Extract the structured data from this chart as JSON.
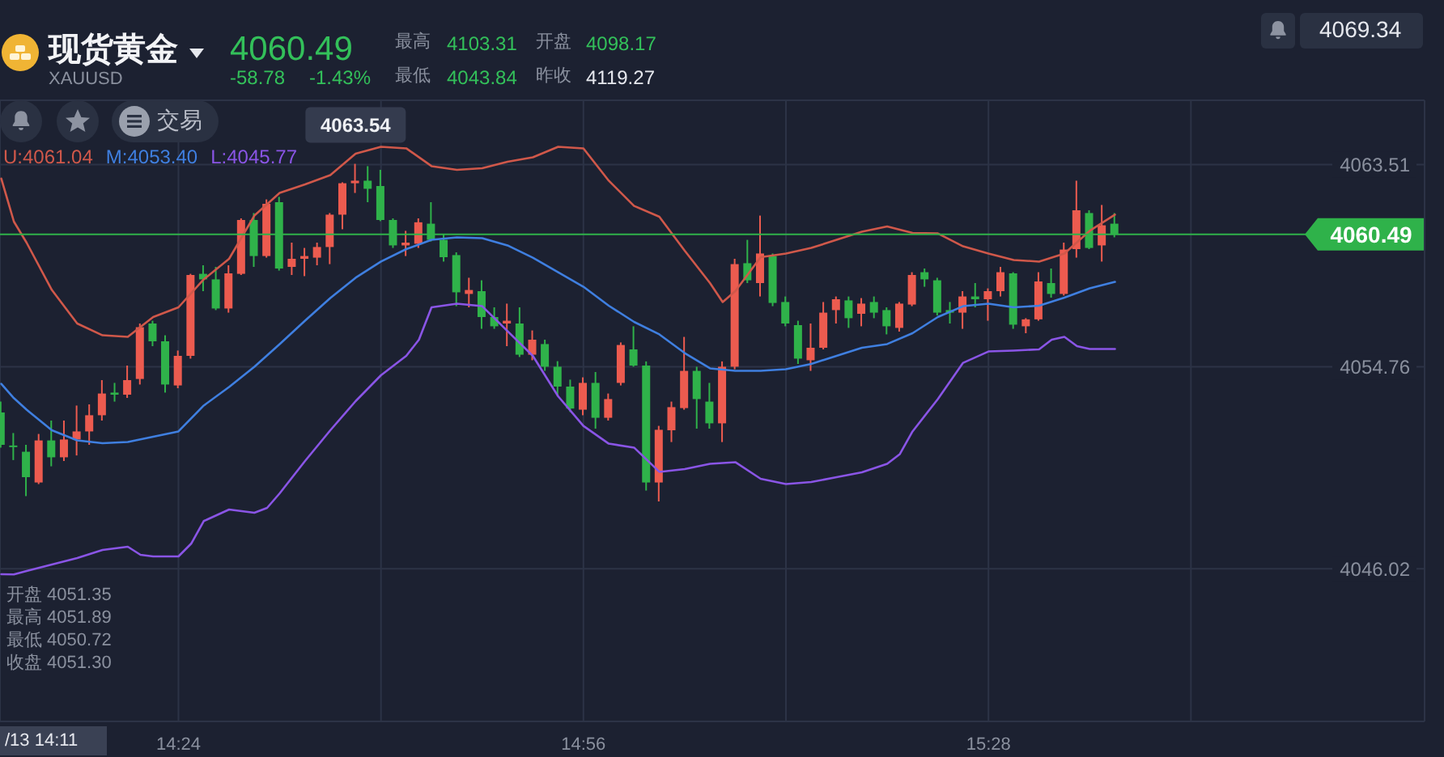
{
  "chart_data": {
    "type": "candlestick",
    "title": "现货黄金",
    "subtitle": "XAUUSD",
    "x": [
      14.1667,
      14.1833,
      14.2,
      14.2167,
      14.2333,
      14.25,
      14.2667,
      14.2833,
      14.3,
      14.3167,
      14.3333,
      14.35,
      14.3667,
      14.3833,
      14.4,
      14.4167,
      14.4333,
      14.45,
      14.4667,
      14.4833,
      14.5,
      14.5167,
      14.5333,
      14.55,
      14.5667,
      14.5833,
      14.6,
      14.6167,
      14.6333,
      14.65,
      14.6667,
      14.6833,
      14.7,
      14.7167,
      14.7333,
      14.75,
      14.7667,
      14.7833,
      14.8,
      14.8167,
      14.8333,
      14.85,
      14.8667,
      14.8833,
      14.9,
      14.9167,
      14.9333,
      14.95,
      14.9667,
      14.9833,
      15,
      15.0167,
      15.0333,
      15.05,
      15.0667,
      15.0833,
      15.1,
      15.1167,
      15.1333,
      15.15,
      15.1667,
      15.1833,
      15.2,
      15.2167,
      15.2333,
      15.25,
      15.2667,
      15.2833,
      15.3,
      15.3167,
      15.3333,
      15.35,
      15.3667,
      15.3833,
      15.4,
      15.4167,
      15.4333,
      15.45,
      15.4667,
      15.4833,
      15.5,
      15.5167,
      15.5333,
      15.55,
      15.5667,
      15.5833,
      15.6,
      15.6167,
      15.6333
    ],
    "ohlc": [
      [
        4052.78,
        4053.25,
        4051.26,
        4051.38
      ],
      [
        4051.35,
        4051.89,
        4050.72,
        4051.3
      ],
      [
        4051.08,
        4051.38,
        4049.16,
        4049.98
      ],
      [
        4049.75,
        4051.85,
        4049.68,
        4051.57
      ],
      [
        4051.57,
        4052.43,
        4050.45,
        4050.84
      ],
      [
        4050.84,
        4052.43,
        4050.68,
        4051.61
      ],
      [
        4051.61,
        4053.08,
        4050.92,
        4051.96
      ],
      [
        4051.96,
        4053.13,
        4051.38,
        4052.66
      ],
      [
        4052.66,
        4054.18,
        4052.43,
        4053.6
      ],
      [
        4053.64,
        4054.06,
        4053.25,
        4053.55
      ],
      [
        4053.55,
        4054.81,
        4053.41,
        4054.18
      ],
      [
        4054.23,
        4056.63,
        4053.99,
        4056.47
      ],
      [
        4056.63,
        4056.75,
        4055.65,
        4055.86
      ],
      [
        4055.86,
        4056.12,
        4053.64,
        4053.99
      ],
      [
        4053.95,
        4055.46,
        4053.83,
        4055.23
      ],
      [
        4055.23,
        4058.78,
        4055.11,
        4058.73
      ],
      [
        4058.78,
        4059.15,
        4058.03,
        4058.54
      ],
      [
        4058.54,
        4059.08,
        4057.21,
        4057.28
      ],
      [
        4057.28,
        4059.15,
        4057.1,
        4058.8
      ],
      [
        4058.78,
        4061.18,
        4058.73,
        4061.11
      ],
      [
        4061.11,
        4061.41,
        4059.08,
        4059.55
      ],
      [
        4059.55,
        4062.0,
        4059.48,
        4061.81
      ],
      [
        4061.88,
        4062.11,
        4058.92,
        4059.01
      ],
      [
        4059.08,
        4060.13,
        4058.73,
        4059.43
      ],
      [
        4059.43,
        4059.9,
        4058.68,
        4059.55
      ],
      [
        4059.48,
        4060.13,
        4059.15,
        4059.94
      ],
      [
        4059.94,
        4061.41,
        4059.2,
        4061.34
      ],
      [
        4061.34,
        4062.74,
        4060.71,
        4062.7
      ],
      [
        4062.7,
        4063.54,
        4062.28,
        4062.81
      ],
      [
        4062.81,
        4063.44,
        4061.88,
        4062.46
      ],
      [
        4062.58,
        4063.28,
        4061.06,
        4061.11
      ],
      [
        4061.11,
        4061.18,
        4059.9,
        4060.01
      ],
      [
        4060.01,
        4060.64,
        4059.55,
        4060.13
      ],
      [
        4060.08,
        4061.18,
        4059.9,
        4061.01
      ],
      [
        4060.95,
        4061.88,
        4060.18,
        4060.25
      ],
      [
        4060.25,
        4060.48,
        4059.31,
        4059.5
      ],
      [
        4059.59,
        4059.71,
        4057.38,
        4057.98
      ],
      [
        4057.91,
        4058.61,
        4057.33,
        4058.08
      ],
      [
        4058.03,
        4058.5,
        4056.4,
        4056.91
      ],
      [
        4056.91,
        4057.33,
        4056.4,
        4056.51
      ],
      [
        4056.63,
        4057.49,
        4055.65,
        4056.75
      ],
      [
        4056.63,
        4057.33,
        4055.18,
        4055.28
      ],
      [
        4055.28,
        4056.33,
        4055.04,
        4055.93
      ],
      [
        4055.74,
        4055.93,
        4054.58,
        4054.76
      ],
      [
        4054.76,
        4055.0,
        4053.5,
        4053.9
      ],
      [
        4053.9,
        4054.2,
        4052.8,
        4052.95
      ],
      [
        4052.9,
        4054.3,
        4052.66,
        4054.06
      ],
      [
        4054.06,
        4054.53,
        4052.08,
        4052.55
      ],
      [
        4052.55,
        4053.6,
        4052.43,
        4053.36
      ],
      [
        4054.06,
        4055.81,
        4053.95,
        4055.7
      ],
      [
        4055.51,
        4056.51,
        4054.76,
        4054.81
      ],
      [
        4054.81,
        4054.99,
        4049.4,
        4049.75
      ],
      [
        4049.75,
        4052.2,
        4048.93,
        4052.03
      ],
      [
        4052.01,
        4053.25,
        4051.5,
        4053.01
      ],
      [
        4052.97,
        4056.05,
        4052.9,
        4054.58
      ],
      [
        4054.58,
        4054.76,
        4052.08,
        4053.36
      ],
      [
        4053.25,
        4054.06,
        4052.08,
        4052.31
      ],
      [
        4052.31,
        4054.99,
        4051.5,
        4054.76
      ],
      [
        4054.76,
        4059.43,
        4054.65,
        4059.2
      ],
      [
        4059.24,
        4060.25,
        4058.38,
        4058.5
      ],
      [
        4058.38,
        4061.3,
        4057.8,
        4059.66
      ],
      [
        4059.55,
        4059.66,
        4057.38,
        4057.52
      ],
      [
        4057.56,
        4057.8,
        4056.51,
        4056.63
      ],
      [
        4056.56,
        4056.75,
        4054.88,
        4055.11
      ],
      [
        4055.04,
        4056.63,
        4054.58,
        4055.58
      ],
      [
        4055.58,
        4057.56,
        4055.51,
        4057.1
      ],
      [
        4057.21,
        4057.8,
        4056.63,
        4057.68
      ],
      [
        4057.63,
        4057.8,
        4056.44,
        4056.86
      ],
      [
        4057.05,
        4057.73,
        4056.51,
        4057.49
      ],
      [
        4057.56,
        4057.8,
        4056.86,
        4057.1
      ],
      [
        4057.21,
        4057.33,
        4056.16,
        4056.51
      ],
      [
        4056.44,
        4057.56,
        4056.28,
        4057.49
      ],
      [
        4057.45,
        4058.85,
        4057.38,
        4058.73
      ],
      [
        4058.85,
        4059.01,
        4058.22,
        4058.54
      ],
      [
        4058.5,
        4058.61,
        4056.98,
        4057.1
      ],
      [
        4057.21,
        4057.56,
        4056.63,
        4057.1
      ],
      [
        4057.1,
        4058.03,
        4056.4,
        4057.8
      ],
      [
        4057.8,
        4058.38,
        4057.33,
        4057.68
      ],
      [
        4057.68,
        4058.15,
        4056.75,
        4058.03
      ],
      [
        4058.03,
        4059.08,
        4057.8,
        4058.85
      ],
      [
        4058.8,
        4058.85,
        4056.4,
        4056.58
      ],
      [
        4056.51,
        4056.86,
        4056.21,
        4056.81
      ],
      [
        4056.81,
        4058.85,
        4056.75,
        4058.45
      ],
      [
        4058.38,
        4059.01,
        4057.75,
        4057.91
      ],
      [
        4057.91,
        4060.13,
        4057.84,
        4059.83
      ],
      [
        4059.85,
        4062.81,
        4059.48,
        4061.53
      ],
      [
        4061.41,
        4061.53,
        4059.85,
        4059.9
      ],
      [
        4060.01,
        4061.76,
        4059.31,
        4060.88
      ],
      [
        4060.95,
        4061.41,
        4060.36,
        4060.49
      ]
    ],
    "colors": [
      "#2fb24a",
      "#2fb24a",
      "#2fb24a",
      "#ec5b4f",
      "#2fb24a",
      "#ec5b4f",
      "#ec5b4f",
      "#ec5b4f",
      "#ec5b4f",
      "#2fb24a",
      "#ec5b4f",
      "#ec5b4f",
      "#2fb24a",
      "#2fb24a",
      "#ec5b4f",
      "#ec5b4f",
      "#2fb24a",
      "#2fb24a",
      "#ec5b4f",
      "#ec5b4f",
      "#2fb24a",
      "#ec5b4f",
      "#2fb24a",
      "#ec5b4f",
      "#ec5b4f",
      "#ec5b4f",
      "#ec5b4f",
      "#ec5b4f",
      "#ec5b4f",
      "#2fb24a",
      "#2fb24a",
      "#2fb24a",
      "#ec5b4f",
      "#ec5b4f",
      "#2fb24a",
      "#2fb24a",
      "#2fb24a",
      "#ec5b4f",
      "#2fb24a",
      "#2fb24a",
      "#ec5b4f",
      "#2fb24a",
      "#ec5b4f",
      "#2fb24a",
      "#2fb24a",
      "#2fb24a",
      "#ec5b4f",
      "#2fb24a",
      "#ec5b4f",
      "#ec5b4f",
      "#2fb24a",
      "#2fb24a",
      "#ec5b4f",
      "#ec5b4f",
      "#ec5b4f",
      "#2fb24a",
      "#2fb24a",
      "#ec5b4f",
      "#ec5b4f",
      "#2fb24a",
      "#ec5b4f",
      "#2fb24a",
      "#2fb24a",
      "#2fb24a",
      "#ec5b4f",
      "#ec5b4f",
      "#ec5b4f",
      "#2fb24a",
      "#ec5b4f",
      "#2fb24a",
      "#2fb24a",
      "#ec5b4f",
      "#ec5b4f",
      "#2fb24a",
      "#2fb24a",
      "#2fb24a",
      "#ec5b4f",
      "#2fb24a",
      "#ec5b4f",
      "#ec5b4f",
      "#2fb24a",
      "#ec5b4f",
      "#ec5b4f",
      "#2fb24a",
      "#ec5b4f",
      "#ec5b4f",
      "#2fb24a",
      "#ec5b4f",
      "#2fb24a"
    ],
    "series": [
      {
        "name": "U:4061.04",
        "type": "line",
        "color": "#d0584a",
        "x": [
          14.1667,
          14.1833,
          14.2,
          14.2333,
          14.2667,
          14.3,
          14.3333,
          14.3667,
          14.4,
          14.4333,
          14.4667,
          14.5,
          14.5333,
          14.5667,
          14.6,
          14.6333,
          14.6667,
          14.7,
          14.7333,
          14.7667,
          14.8,
          14.8333,
          14.8667,
          14.9,
          14.9333,
          14.9667,
          15,
          15.0333,
          15.0667,
          15.1,
          15.1167,
          15.1333,
          15.1667,
          15.2,
          15.2333,
          15.2667,
          15.3,
          15.3333,
          15.3667,
          15.4,
          15.4333,
          15.4667,
          15.5,
          15.5333,
          15.5667,
          15.6,
          15.6333
        ],
        "values": [
          4062.9,
          4061.04,
          4060.13,
          4058.08,
          4056.63,
          4056.12,
          4056.05,
          4056.91,
          4057.33,
          4058.54,
          4059.43,
          4061.3,
          4062.28,
          4062.65,
          4063.05,
          4063.98,
          4064.28,
          4064.21,
          4063.44,
          4063.28,
          4063.35,
          4063.63,
          4063.82,
          4064.28,
          4064.21,
          4062.81,
          4061.72,
          4061.25,
          4059.78,
          4058.38,
          4057.56,
          4058.03,
          4059.5,
          4059.66,
          4059.9,
          4060.25,
          4060.6,
          4060.83,
          4060.55,
          4060.53,
          4059.97,
          4059.66,
          4059.38,
          4059.31,
          4059.66,
          4060.64,
          4061.34
        ]
      },
      {
        "name": "M:4053.40",
        "type": "line",
        "color": "#3f7fe0",
        "x": [
          14.1667,
          14.1833,
          14.2,
          14.2333,
          14.2667,
          14.3,
          14.3333,
          14.3667,
          14.4,
          14.4333,
          14.4667,
          14.5,
          14.5333,
          14.5667,
          14.6,
          14.6333,
          14.6667,
          14.7,
          14.7333,
          14.7667,
          14.8,
          14.8333,
          14.8667,
          14.9,
          14.9333,
          14.9667,
          15,
          15.0333,
          15.0667,
          15.1,
          15.1333,
          15.1667,
          15.2,
          15.2333,
          15.2667,
          15.3,
          15.3333,
          15.3667,
          15.4,
          15.4333,
          15.4667,
          15.5,
          15.5333,
          15.5667,
          15.6,
          15.6333
        ],
        "values": [
          4054.02,
          4053.4,
          4052.9,
          4052.01,
          4051.57,
          4051.45,
          4051.5,
          4051.73,
          4051.96,
          4053.08,
          4053.88,
          4054.76,
          4055.74,
          4056.75,
          4057.73,
          4058.61,
          4059.31,
          4059.85,
          4060.25,
          4060.36,
          4060.32,
          4060.01,
          4059.48,
          4058.85,
          4058.22,
          4057.4,
          4056.7,
          4056.16,
          4055.35,
          4054.69,
          4054.58,
          4054.58,
          4054.65,
          4054.88,
          4055.23,
          4055.58,
          4055.74,
          4056.21,
          4056.91,
          4057.38,
          4057.49,
          4057.33,
          4057.4,
          4057.75,
          4058.15,
          4058.43
        ]
      },
      {
        "name": "L:4045.77",
        "type": "line",
        "color": "#8a55e6",
        "x": [
          14.1667,
          14.1833,
          14.2,
          14.2333,
          14.2667,
          14.3,
          14.3333,
          14.35,
          14.3667,
          14.4,
          14.4167,
          14.4333,
          14.4667,
          14.5,
          14.5167,
          14.5333,
          14.5667,
          14.6,
          14.6333,
          14.6667,
          14.7,
          14.7167,
          14.7333,
          14.7667,
          14.8,
          14.8333,
          14.8667,
          14.9,
          14.9333,
          14.9667,
          15,
          15.0333,
          15.0667,
          15.1,
          15.1333,
          15.1667,
          15.2,
          15.2333,
          15.2667,
          15.3,
          15.3333,
          15.35,
          15.3667,
          15.4,
          15.4333,
          15.4667,
          15.5,
          15.5333,
          15.55,
          15.5667,
          15.5833,
          15.6,
          15.6333
        ],
        "values": [
          4045.78,
          4045.77,
          4045.92,
          4046.2,
          4046.48,
          4046.83,
          4046.97,
          4046.62,
          4046.55,
          4046.55,
          4047.1,
          4048.08,
          4048.58,
          4048.44,
          4048.65,
          4049.28,
          4050.68,
          4052.01,
          4053.27,
          4054.39,
          4055.23,
          4055.93,
          4057.33,
          4057.49,
          4057.38,
          4056.3,
          4055.23,
          4053.48,
          4052.2,
          4051.43,
          4051.26,
          4050.21,
          4050.33,
          4050.56,
          4050.63,
          4049.91,
          4049.68,
          4049.77,
          4049.98,
          4050.19,
          4050.56,
          4050.98,
          4051.96,
          4053.36,
          4054.93,
          4055.42,
          4055.46,
          4055.51,
          4055.93,
          4056.05,
          4055.65,
          4055.53,
          4055.53
        ]
      }
    ],
    "xlim": [
      14.165,
      16.041
    ],
    "xticks": [
      {
        "value": 14.4,
        "label": "14:24"
      },
      {
        "value": 14.6667,
        "label": null
      },
      {
        "value": 14.9333,
        "label": "14:56"
      },
      {
        "value": 15.2,
        "label": null
      },
      {
        "value": 15.4667,
        "label": "15:28"
      },
      {
        "value": 15.7333,
        "label": null
      }
    ],
    "ylim": [
      4039.41,
      4066.29
    ],
    "yticks": [
      4046.02,
      4054.76,
      4063.51
    ],
    "grid": true,
    "legend": "top left",
    "ref_lines": [
      {
        "axis": "y",
        "value": 4060.49,
        "label": "4060.49",
        "color": "#2fb24a"
      }
    ],
    "annotations": [
      "4060.49",
      "-58.78",
      "-1.43%",
      "最高",
      "4103.31",
      "开盘",
      "4098.17",
      "最低",
      "4043.84",
      "昨收",
      "4119.27",
      "交易",
      "4069.34",
      {
        "text": "4063.54",
        "x": 14.6333,
        "y": 4063.54
      },
      "开盘 4051.35",
      "最高 4051.89",
      "最低 4050.72",
      "收盘 4051.30",
      "/13 14:11"
    ]
  }
}
